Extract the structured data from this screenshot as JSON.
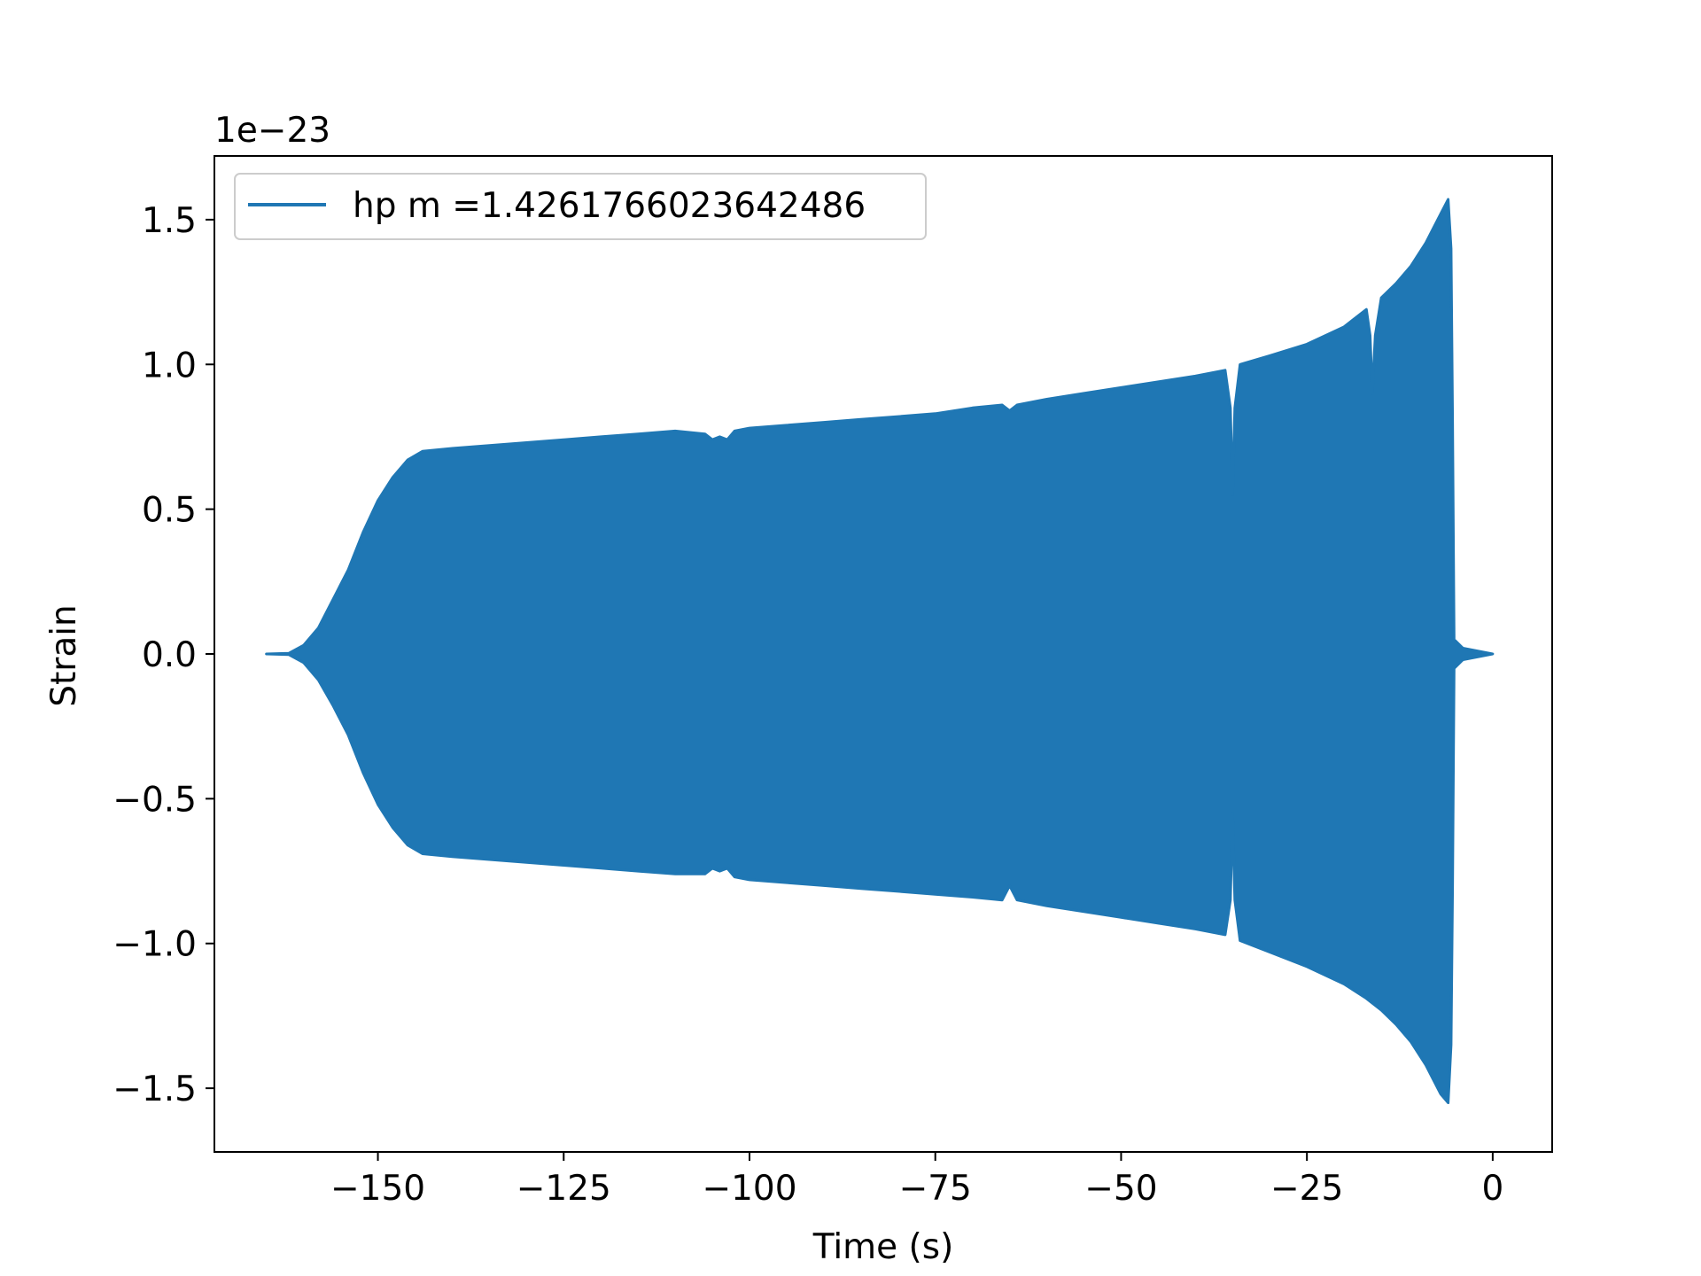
{
  "chart_data": {
    "type": "line",
    "title": "",
    "xlabel": "Time (s)",
    "ylabel": "Strain",
    "y_offset_label": "1e−23",
    "y_scale_factor": 1e-23,
    "xlim": [
      -172,
      8
    ],
    "ylim": [
      -1.72,
      1.72
    ],
    "x_ticks": [
      {
        "value": -150,
        "label": "−150"
      },
      {
        "value": -125,
        "label": "−125"
      },
      {
        "value": -100,
        "label": "−100"
      },
      {
        "value": -75,
        "label": "−75"
      },
      {
        "value": -50,
        "label": "−50"
      },
      {
        "value": -25,
        "label": "−25"
      },
      {
        "value": 0,
        "label": "0"
      }
    ],
    "y_ticks": [
      {
        "value": 1.5,
        "label": "1.5"
      },
      {
        "value": 1.0,
        "label": "1.0"
      },
      {
        "value": 0.5,
        "label": "0.5"
      },
      {
        "value": 0.0,
        "label": "0.0"
      },
      {
        "value": -0.5,
        "label": "−0.5"
      },
      {
        "value": -1.0,
        "label": "−1.0"
      },
      {
        "value": -1.5,
        "label": "−1.5"
      }
    ],
    "legend_position": "top-left",
    "grid": false,
    "series": [
      {
        "name": "hp m =1.4261766023642486",
        "color": "#1f77b4",
        "style": "dense oscillation, envelope shown",
        "envelope_upper": [
          [
            -165,
            0.0
          ],
          [
            -162,
            0.002
          ],
          [
            -160,
            0.03
          ],
          [
            -158,
            0.09
          ],
          [
            -156,
            0.19
          ],
          [
            -154,
            0.29
          ],
          [
            -152,
            0.42
          ],
          [
            -150,
            0.53
          ],
          [
            -148,
            0.61
          ],
          [
            -146,
            0.67
          ],
          [
            -144,
            0.7
          ],
          [
            -140,
            0.71
          ],
          [
            -135,
            0.72
          ],
          [
            -130,
            0.73
          ],
          [
            -125,
            0.74
          ],
          [
            -120,
            0.75
          ],
          [
            -115,
            0.76
          ],
          [
            -110,
            0.77
          ],
          [
            -106,
            0.76
          ],
          [
            -105,
            0.74
          ],
          [
            -104,
            0.75
          ],
          [
            -103,
            0.74
          ],
          [
            -102,
            0.77
          ],
          [
            -100,
            0.78
          ],
          [
            -95,
            0.79
          ],
          [
            -90,
            0.8
          ],
          [
            -85,
            0.81
          ],
          [
            -80,
            0.82
          ],
          [
            -75,
            0.83
          ],
          [
            -70,
            0.85
          ],
          [
            -66,
            0.86
          ],
          [
            -65,
            0.84
          ],
          [
            -64,
            0.86
          ],
          [
            -60,
            0.88
          ],
          [
            -55,
            0.9
          ],
          [
            -50,
            0.92
          ],
          [
            -45,
            0.94
          ],
          [
            -40,
            0.96
          ],
          [
            -36,
            0.98
          ],
          [
            -35.3,
            0.85
          ],
          [
            -35,
            0.55
          ],
          [
            -34.7,
            0.85
          ],
          [
            -34,
            1.0
          ],
          [
            -30,
            1.03
          ],
          [
            -25,
            1.07
          ],
          [
            -20,
            1.13
          ],
          [
            -17,
            1.19
          ],
          [
            -16.5,
            1.1
          ],
          [
            -16.2,
            0.9
          ],
          [
            -15.8,
            1.1
          ],
          [
            -15,
            1.23
          ],
          [
            -13,
            1.28
          ],
          [
            -11,
            1.34
          ],
          [
            -9,
            1.42
          ],
          [
            -7,
            1.52
          ],
          [
            -6,
            1.57
          ],
          [
            -5.6,
            1.4
          ],
          [
            -5.4,
            0.8
          ],
          [
            -5.2,
            0.05
          ],
          [
            -4,
            0.02
          ],
          [
            0,
            0.0
          ]
        ],
        "envelope_lower": [
          [
            -165,
            0.0
          ],
          [
            -162,
            -0.002
          ],
          [
            -160,
            -0.03
          ],
          [
            -158,
            -0.09
          ],
          [
            -156,
            -0.18
          ],
          [
            -154,
            -0.28
          ],
          [
            -152,
            -0.41
          ],
          [
            -150,
            -0.52
          ],
          [
            -148,
            -0.6
          ],
          [
            -146,
            -0.66
          ],
          [
            -144,
            -0.69
          ],
          [
            -140,
            -0.7
          ],
          [
            -135,
            -0.71
          ],
          [
            -130,
            -0.72
          ],
          [
            -125,
            -0.73
          ],
          [
            -120,
            -0.74
          ],
          [
            -115,
            -0.75
          ],
          [
            -110,
            -0.76
          ],
          [
            -106,
            -0.76
          ],
          [
            -105,
            -0.74
          ],
          [
            -104,
            -0.75
          ],
          [
            -103,
            -0.74
          ],
          [
            -102,
            -0.77
          ],
          [
            -100,
            -0.78
          ],
          [
            -95,
            -0.79
          ],
          [
            -90,
            -0.8
          ],
          [
            -85,
            -0.81
          ],
          [
            -80,
            -0.82
          ],
          [
            -75,
            -0.83
          ],
          [
            -70,
            -0.84
          ],
          [
            -66,
            -0.85
          ],
          [
            -65,
            -0.8
          ],
          [
            -64,
            -0.85
          ],
          [
            -60,
            -0.87
          ],
          [
            -55,
            -0.89
          ],
          [
            -50,
            -0.91
          ],
          [
            -45,
            -0.93
          ],
          [
            -40,
            -0.95
          ],
          [
            -36,
            -0.97
          ],
          [
            -35.3,
            -0.85
          ],
          [
            -35,
            -0.55
          ],
          [
            -34.7,
            -0.85
          ],
          [
            -34,
            -0.99
          ],
          [
            -30,
            -1.03
          ],
          [
            -25,
            -1.08
          ],
          [
            -20,
            -1.14
          ],
          [
            -17,
            -1.19
          ],
          [
            -15,
            -1.23
          ],
          [
            -13,
            -1.28
          ],
          [
            -11,
            -1.34
          ],
          [
            -9,
            -1.42
          ],
          [
            -7,
            -1.52
          ],
          [
            -6,
            -1.55
          ],
          [
            -5.6,
            -1.35
          ],
          [
            -5.4,
            -0.8
          ],
          [
            -5.2,
            -0.05
          ],
          [
            -4,
            -0.02
          ],
          [
            0,
            0.0
          ]
        ]
      }
    ]
  }
}
